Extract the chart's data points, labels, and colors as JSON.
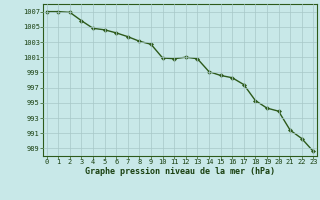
{
  "x": [
    0,
    1,
    2,
    3,
    4,
    5,
    6,
    7,
    8,
    9,
    10,
    11,
    12,
    13,
    14,
    15,
    16,
    17,
    18,
    19,
    20,
    21,
    22,
    23
  ],
  "y": [
    1007.0,
    1007.0,
    1006.9,
    1005.8,
    1004.8,
    1004.6,
    1004.2,
    1003.7,
    1003.1,
    1002.7,
    1000.9,
    1000.8,
    1001.0,
    1000.8,
    999.1,
    998.6,
    998.3,
    997.4,
    995.3,
    994.3,
    993.9,
    991.4,
    990.3,
    988.6
  ],
  "line_color": "#2d5a1b",
  "marker": "D",
  "marker_size": 2.2,
  "line_width": 1.0,
  "background_color": "#c8e8e8",
  "grid_color": "#a8c8c8",
  "xlabel": "Graphe pression niveau de la mer (hPa)",
  "xlabel_color": "#1a4010",
  "xlabel_fontsize": 6.0,
  "yticks": [
    989,
    991,
    993,
    995,
    997,
    999,
    1001,
    1003,
    1005,
    1007
  ],
  "xticks": [
    0,
    1,
    2,
    3,
    4,
    5,
    6,
    7,
    8,
    9,
    10,
    11,
    12,
    13,
    14,
    15,
    16,
    17,
    18,
    19,
    20,
    21,
    22,
    23
  ],
  "ylim": [
    988.0,
    1008.0
  ],
  "xlim": [
    -0.3,
    23.3
  ],
  "tick_color": "#1a4010",
  "tick_fontsize": 5.0,
  "spine_color": "#2d5a1b"
}
